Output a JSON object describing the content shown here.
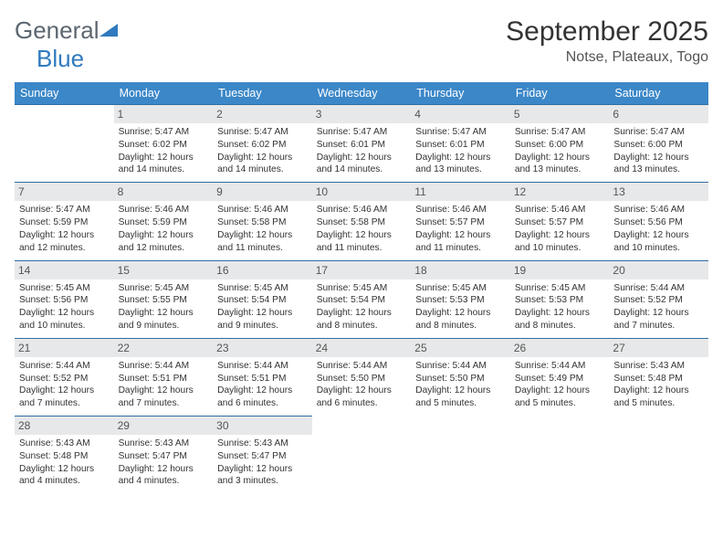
{
  "logo": {
    "part1": "General",
    "part2": "Blue"
  },
  "header": {
    "title": "September 2025",
    "location": "Notse, Plateaux, Togo"
  },
  "colors": {
    "header_bg": "#3b87c8",
    "divider": "#2f6ea6",
    "daynum_bg": "#e7e8e9",
    "logo_gray": "#5c6670",
    "logo_blue": "#2f7abf"
  },
  "weekdays": [
    "Sunday",
    "Monday",
    "Tuesday",
    "Wednesday",
    "Thursday",
    "Friday",
    "Saturday"
  ],
  "days": [
    {
      "n": "1",
      "sunrise": "Sunrise: 5:47 AM",
      "sunset": "Sunset: 6:02 PM",
      "daylight": "Daylight: 12 hours and 14 minutes."
    },
    {
      "n": "2",
      "sunrise": "Sunrise: 5:47 AM",
      "sunset": "Sunset: 6:02 PM",
      "daylight": "Daylight: 12 hours and 14 minutes."
    },
    {
      "n": "3",
      "sunrise": "Sunrise: 5:47 AM",
      "sunset": "Sunset: 6:01 PM",
      "daylight": "Daylight: 12 hours and 14 minutes."
    },
    {
      "n": "4",
      "sunrise": "Sunrise: 5:47 AM",
      "sunset": "Sunset: 6:01 PM",
      "daylight": "Daylight: 12 hours and 13 minutes."
    },
    {
      "n": "5",
      "sunrise": "Sunrise: 5:47 AM",
      "sunset": "Sunset: 6:00 PM",
      "daylight": "Daylight: 12 hours and 13 minutes."
    },
    {
      "n": "6",
      "sunrise": "Sunrise: 5:47 AM",
      "sunset": "Sunset: 6:00 PM",
      "daylight": "Daylight: 12 hours and 13 minutes."
    },
    {
      "n": "7",
      "sunrise": "Sunrise: 5:47 AM",
      "sunset": "Sunset: 5:59 PM",
      "daylight": "Daylight: 12 hours and 12 minutes."
    },
    {
      "n": "8",
      "sunrise": "Sunrise: 5:46 AM",
      "sunset": "Sunset: 5:59 PM",
      "daylight": "Daylight: 12 hours and 12 minutes."
    },
    {
      "n": "9",
      "sunrise": "Sunrise: 5:46 AM",
      "sunset": "Sunset: 5:58 PM",
      "daylight": "Daylight: 12 hours and 11 minutes."
    },
    {
      "n": "10",
      "sunrise": "Sunrise: 5:46 AM",
      "sunset": "Sunset: 5:58 PM",
      "daylight": "Daylight: 12 hours and 11 minutes."
    },
    {
      "n": "11",
      "sunrise": "Sunrise: 5:46 AM",
      "sunset": "Sunset: 5:57 PM",
      "daylight": "Daylight: 12 hours and 11 minutes."
    },
    {
      "n": "12",
      "sunrise": "Sunrise: 5:46 AM",
      "sunset": "Sunset: 5:57 PM",
      "daylight": "Daylight: 12 hours and 10 minutes."
    },
    {
      "n": "13",
      "sunrise": "Sunrise: 5:46 AM",
      "sunset": "Sunset: 5:56 PM",
      "daylight": "Daylight: 12 hours and 10 minutes."
    },
    {
      "n": "14",
      "sunrise": "Sunrise: 5:45 AM",
      "sunset": "Sunset: 5:56 PM",
      "daylight": "Daylight: 12 hours and 10 minutes."
    },
    {
      "n": "15",
      "sunrise": "Sunrise: 5:45 AM",
      "sunset": "Sunset: 5:55 PM",
      "daylight": "Daylight: 12 hours and 9 minutes."
    },
    {
      "n": "16",
      "sunrise": "Sunrise: 5:45 AM",
      "sunset": "Sunset: 5:54 PM",
      "daylight": "Daylight: 12 hours and 9 minutes."
    },
    {
      "n": "17",
      "sunrise": "Sunrise: 5:45 AM",
      "sunset": "Sunset: 5:54 PM",
      "daylight": "Daylight: 12 hours and 8 minutes."
    },
    {
      "n": "18",
      "sunrise": "Sunrise: 5:45 AM",
      "sunset": "Sunset: 5:53 PM",
      "daylight": "Daylight: 12 hours and 8 minutes."
    },
    {
      "n": "19",
      "sunrise": "Sunrise: 5:45 AM",
      "sunset": "Sunset: 5:53 PM",
      "daylight": "Daylight: 12 hours and 8 minutes."
    },
    {
      "n": "20",
      "sunrise": "Sunrise: 5:44 AM",
      "sunset": "Sunset: 5:52 PM",
      "daylight": "Daylight: 12 hours and 7 minutes."
    },
    {
      "n": "21",
      "sunrise": "Sunrise: 5:44 AM",
      "sunset": "Sunset: 5:52 PM",
      "daylight": "Daylight: 12 hours and 7 minutes."
    },
    {
      "n": "22",
      "sunrise": "Sunrise: 5:44 AM",
      "sunset": "Sunset: 5:51 PM",
      "daylight": "Daylight: 12 hours and 7 minutes."
    },
    {
      "n": "23",
      "sunrise": "Sunrise: 5:44 AM",
      "sunset": "Sunset: 5:51 PM",
      "daylight": "Daylight: 12 hours and 6 minutes."
    },
    {
      "n": "24",
      "sunrise": "Sunrise: 5:44 AM",
      "sunset": "Sunset: 5:50 PM",
      "daylight": "Daylight: 12 hours and 6 minutes."
    },
    {
      "n": "25",
      "sunrise": "Sunrise: 5:44 AM",
      "sunset": "Sunset: 5:50 PM",
      "daylight": "Daylight: 12 hours and 5 minutes."
    },
    {
      "n": "26",
      "sunrise": "Sunrise: 5:44 AM",
      "sunset": "Sunset: 5:49 PM",
      "daylight": "Daylight: 12 hours and 5 minutes."
    },
    {
      "n": "27",
      "sunrise": "Sunrise: 5:43 AM",
      "sunset": "Sunset: 5:48 PM",
      "daylight": "Daylight: 12 hours and 5 minutes."
    },
    {
      "n": "28",
      "sunrise": "Sunrise: 5:43 AM",
      "sunset": "Sunset: 5:48 PM",
      "daylight": "Daylight: 12 hours and 4 minutes."
    },
    {
      "n": "29",
      "sunrise": "Sunrise: 5:43 AM",
      "sunset": "Sunset: 5:47 PM",
      "daylight": "Daylight: 12 hours and 4 minutes."
    },
    {
      "n": "30",
      "sunrise": "Sunrise: 5:43 AM",
      "sunset": "Sunset: 5:47 PM",
      "daylight": "Daylight: 12 hours and 3 minutes."
    }
  ],
  "start_offset": 1
}
